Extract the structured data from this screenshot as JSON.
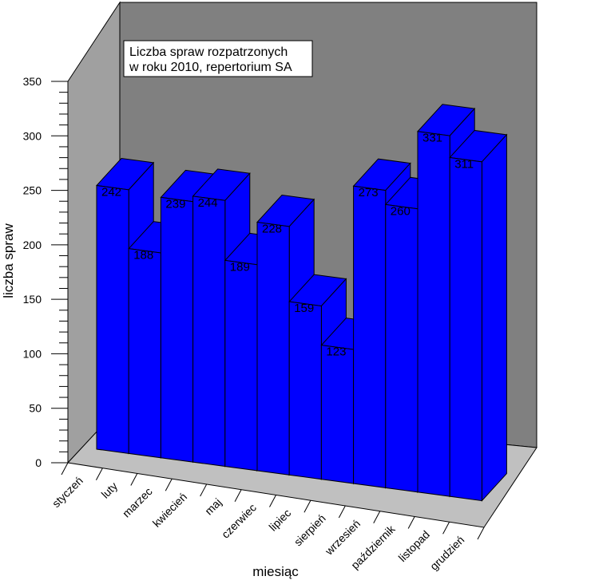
{
  "chart_data": {
    "type": "bar",
    "title_lines": [
      "Liczba spraw rozpatrzonych",
      "w roku 2010, repertorium SA"
    ],
    "xlabel": "miesiąc",
    "ylabel": "liczba spraw",
    "categories": [
      "styczeń",
      "luty",
      "marzec",
      "kwiecień",
      "maj",
      "czerwiec",
      "lipiec",
      "sierpień",
      "wrzesień",
      "październik",
      "listopad",
      "grudzień"
    ],
    "values": [
      242,
      188,
      239,
      244,
      189,
      228,
      159,
      123,
      273,
      260,
      331,
      311
    ],
    "ylim": [
      0,
      350
    ],
    "yticks": [
      0,
      50,
      100,
      150,
      200,
      250,
      300,
      350
    ],
    "grid": false,
    "legend": "none",
    "style": "3d",
    "colors": {
      "bar_front": "#0000ff",
      "bar_top": "#0000ff",
      "bar_side": "#0000ff",
      "back_wall": "#808080",
      "side_wall": "#a0a0a0",
      "floor": "#c0c0c0"
    }
  }
}
